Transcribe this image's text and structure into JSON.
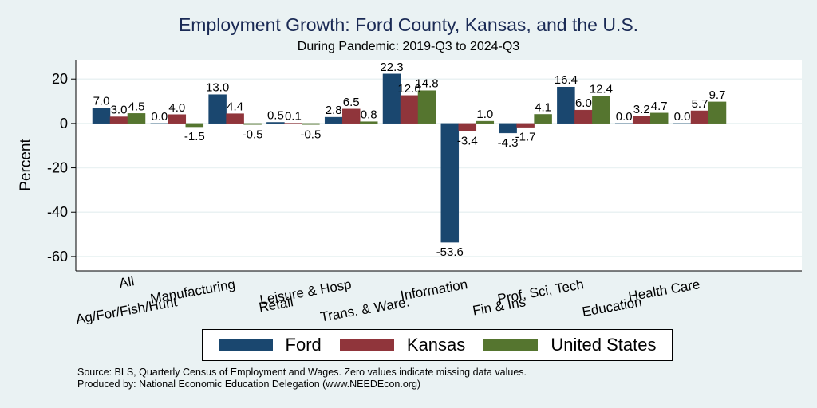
{
  "chart_data": {
    "type": "bar",
    "title": "Employment Growth: Ford County, Kansas, and the U.S.",
    "subtitle": "During Pandemic: 2019-Q3 to 2024-Q3",
    "xlabel": "",
    "ylabel": "Percent",
    "ylim": [
      -66.5,
      28.7
    ],
    "yticks": [
      20,
      0,
      -20,
      -40,
      -60
    ],
    "grid": true,
    "legend_position": "bottom",
    "categories": [
      "All",
      "Ag/For/Fish/Hunt",
      "Manufacturing",
      "Retail",
      "Leisure & Hosp",
      "Trans. & Ware.",
      "Information",
      "Fin & Ins",
      "Prof, Sci, Tech",
      "Education",
      "Health Care"
    ],
    "series": [
      {
        "name": "Ford",
        "color": "#1a476f",
        "values": [
          7.0,
          0.0,
          13.0,
          0.5,
          2.8,
          22.3,
          -53.6,
          -4.3,
          16.4,
          0.0,
          0.0
        ]
      },
      {
        "name": "Kansas",
        "color": "#90353b",
        "values": [
          3.0,
          4.0,
          4.4,
          0.1,
          6.5,
          12.6,
          -3.4,
          -1.7,
          6.0,
          3.2,
          5.7
        ]
      },
      {
        "name": "United States",
        "color": "#55752f",
        "values": [
          4.5,
          -1.5,
          -0.5,
          -0.5,
          0.8,
          14.8,
          1.0,
          4.1,
          12.4,
          4.7,
          9.7
        ]
      }
    ]
  },
  "footer": {
    "source": "Source: BLS, Quarterly Census of Employment and Wages. Zero values indicate missing data values.",
    "produced_by": "Produced by: National Economic Education Delegation (www.NEEDEcon.org)"
  }
}
